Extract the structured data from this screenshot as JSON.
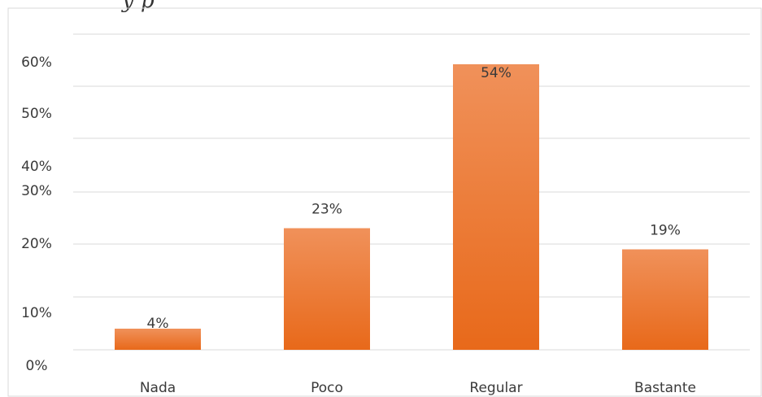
{
  "title_fragment": "y   p",
  "chart_data": {
    "type": "bar",
    "categories": [
      "Nada",
      "Poco",
      "Regular",
      "Bastante"
    ],
    "values": [
      4,
      23,
      54,
      19
    ],
    "data_labels": [
      "4%",
      "23%",
      "54%",
      "19%"
    ],
    "y_tick_labels": [
      "0%",
      "10%",
      "20%",
      "30%",
      "40%",
      "50%",
      "60%"
    ],
    "ylim": [
      0,
      60
    ],
    "grid": true,
    "legend": "none",
    "colors": {
      "bar_top": "#f0915a",
      "bar_bottom": "#e8691a",
      "grid": "#d9d9d9",
      "shadow": "#6b6b6b"
    }
  }
}
